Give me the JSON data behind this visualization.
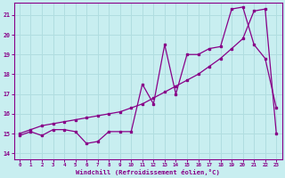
{
  "xlabel": "Windchill (Refroidissement éolien,°C)",
  "background_color": "#c8eef0",
  "grid_color": "#b0dde0",
  "line_color": "#880088",
  "x_ticks": [
    0,
    1,
    2,
    3,
    4,
    5,
    6,
    7,
    8,
    9,
    10,
    11,
    12,
    13,
    14,
    15,
    16,
    17,
    18,
    19,
    20,
    21,
    22,
    23
  ],
  "y_ticks": [
    14,
    15,
    16,
    17,
    18,
    19,
    20,
    21
  ],
  "ylim": [
    13.7,
    21.6
  ],
  "xlim": [
    -0.5,
    23.5
  ],
  "series1_x": [
    0,
    1,
    2,
    3,
    4,
    5,
    6,
    7,
    8,
    9,
    10,
    11,
    12,
    13,
    14,
    15,
    16,
    17,
    18,
    19,
    20,
    21,
    22,
    23
  ],
  "series1_y": [
    14.9,
    15.1,
    14.9,
    15.2,
    15.2,
    15.1,
    14.5,
    14.6,
    15.1,
    15.1,
    15.1,
    17.5,
    16.5,
    19.5,
    17.0,
    19.0,
    19.0,
    19.3,
    19.4,
    21.3,
    21.4,
    19.5,
    18.8,
    16.3
  ],
  "series2_x": [
    0,
    1,
    2,
    3,
    4,
    5,
    6,
    7,
    8,
    9,
    10,
    11,
    12,
    13,
    14,
    15,
    16,
    17,
    18,
    19,
    20,
    21,
    22,
    23
  ],
  "series2_y": [
    15.0,
    15.2,
    15.4,
    15.5,
    15.6,
    15.7,
    15.8,
    15.9,
    16.0,
    16.1,
    16.3,
    16.5,
    16.8,
    17.1,
    17.4,
    17.7,
    18.0,
    18.4,
    18.8,
    19.3,
    19.8,
    21.2,
    21.3,
    15.0
  ]
}
